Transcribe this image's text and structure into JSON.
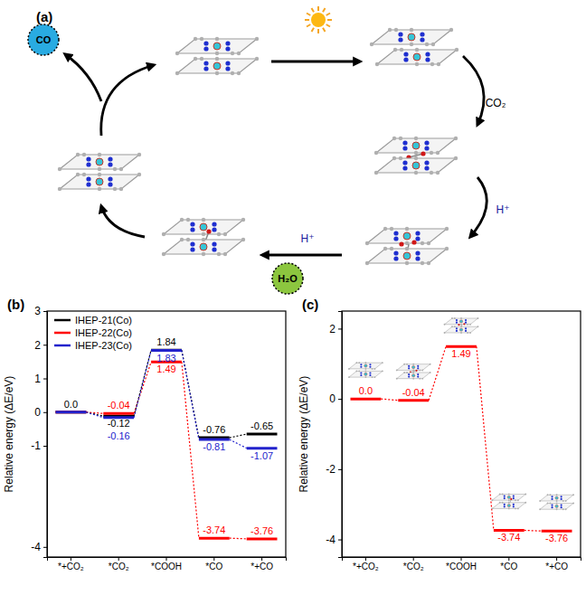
{
  "diagram": {
    "title": "(a)",
    "steps": [
      "CO₂",
      "H⁺",
      "H⁺"
    ],
    "products": [
      {
        "label": "CO",
        "color": "#29abe2"
      },
      {
        "label": "H₂O",
        "color": "#8cc63f"
      }
    ]
  },
  "chart_data": [
    {
      "type": "line",
      "title": "(b)",
      "y_label": "Relative energy (ΔE/eV)",
      "categories": [
        "*+CO₂",
        "*CO₂",
        "*COOH",
        "*CO",
        "*+CO"
      ],
      "ylim": [
        -4.3,
        3
      ],
      "yticks": [
        -4,
        -1,
        0,
        1,
        2,
        3
      ],
      "legend": "upper left",
      "data_labels": true,
      "line_style": "dotted",
      "series": [
        {
          "name": "IHEP-21(Co)",
          "color": "#000000",
          "values": [
            0,
            -0.12,
            1.84,
            -0.76,
            -0.65
          ],
          "value_labels": [
            "0.0",
            "-0.12",
            "1.84",
            "-0.76",
            "-0.65"
          ]
        },
        {
          "name": "IHEP-22(Co)",
          "color": "#ff0000",
          "values": [
            0,
            -0.04,
            1.49,
            -3.74,
            -3.76
          ],
          "value_labels": [
            null,
            "-0.04",
            "1.49",
            "-3.74",
            "-3.76"
          ]
        },
        {
          "name": "IHEP-23(Co)",
          "color": "#2222cc",
          "values": [
            0,
            -0.16,
            1.83,
            -0.81,
            -1.07
          ],
          "value_labels": [
            null,
            "-0.16",
            "1.83",
            "-0.81",
            "-1.07"
          ]
        }
      ]
    },
    {
      "type": "line",
      "title": "(c)",
      "y_label": "Relative energy (ΔE/eV)",
      "categories": [
        "*+CO₂",
        "*CO₂",
        "*COOH",
        "*CO",
        "*+CO"
      ],
      "ylim": [
        -4.5,
        2.5
      ],
      "yticks": [
        -4,
        -2,
        0,
        2
      ],
      "data_labels": true,
      "line_style": "dotted",
      "series": [
        {
          "color": "#ff0000",
          "values": [
            0,
            -0.04,
            1.49,
            -3.74,
            -3.76
          ],
          "value_labels": [
            "0.0",
            "-0.04",
            "1.49",
            "-3.74",
            "-3.76"
          ]
        }
      ]
    }
  ]
}
